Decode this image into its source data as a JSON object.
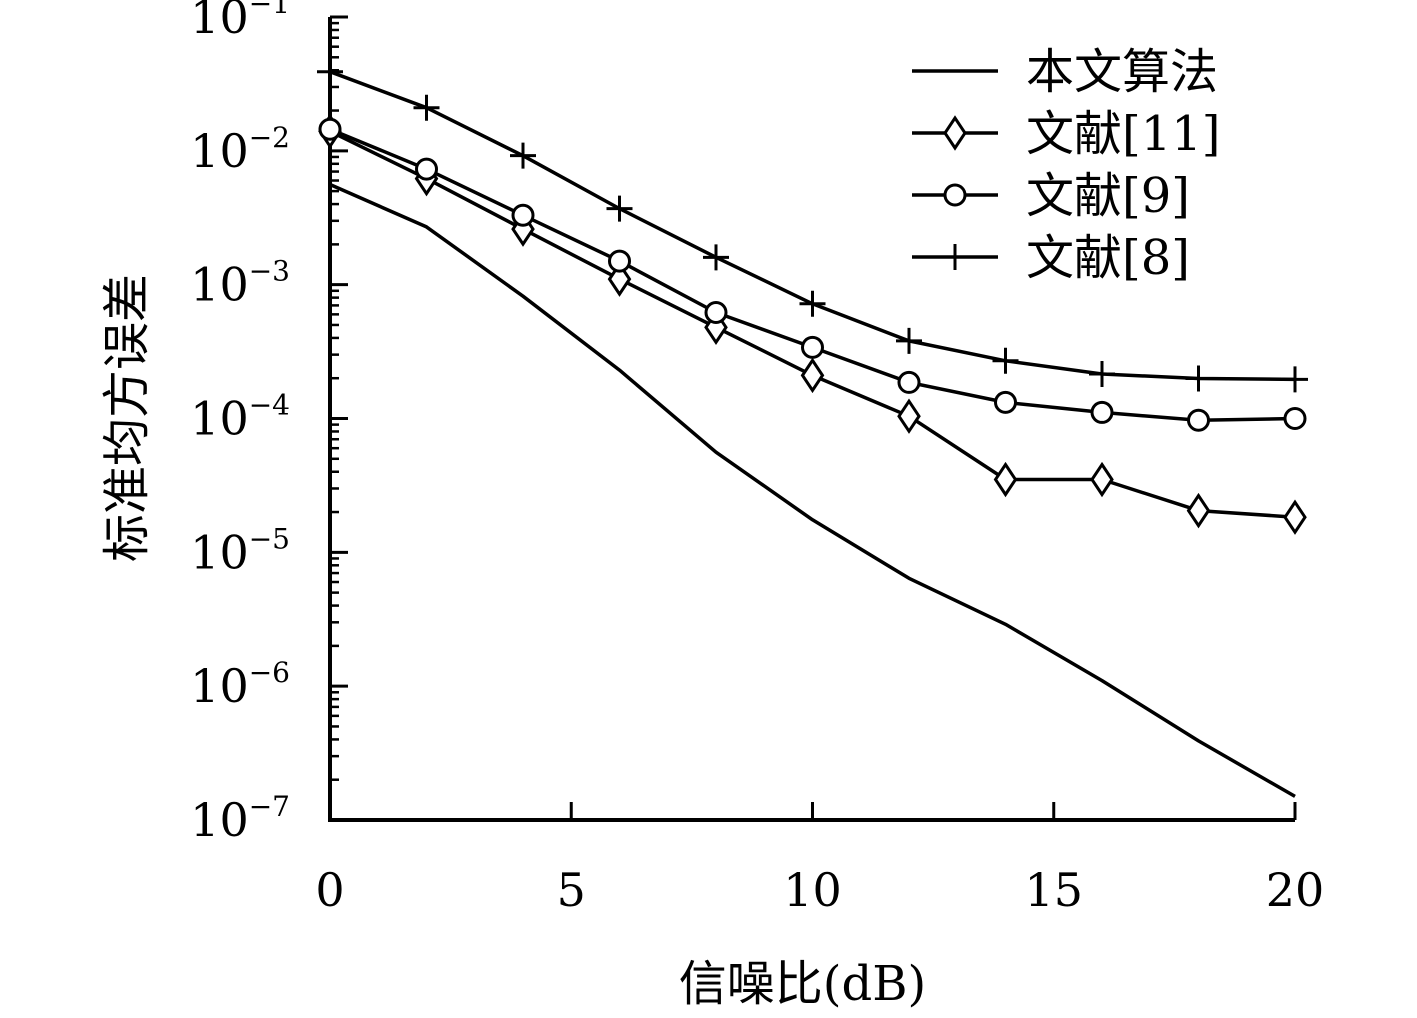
{
  "chart_data": {
    "type": "line",
    "title": "",
    "xlabel": "信噪比(dB)",
    "ylabel": "标准均方误差",
    "xlim": [
      0,
      20
    ],
    "ylim": [
      1e-07,
      0.1
    ],
    "yscale": "log",
    "grid": false,
    "legend_position": "top-right",
    "x_ticks": [
      {
        "value": 0,
        "label": "0"
      },
      {
        "value": 5,
        "label": "5"
      },
      {
        "value": 10,
        "label": "10"
      },
      {
        "value": 15,
        "label": "15"
      },
      {
        "value": 20,
        "label": "20"
      }
    ],
    "y_ticks": [
      {
        "value": 0.1,
        "base": "10",
        "exp": "−1"
      },
      {
        "value": 0.01,
        "base": "10",
        "exp": "−2"
      },
      {
        "value": 0.001,
        "base": "10",
        "exp": "−3"
      },
      {
        "value": 0.0001,
        "base": "10",
        "exp": "−4"
      },
      {
        "value": 1e-05,
        "base": "10",
        "exp": "−5"
      },
      {
        "value": 1e-06,
        "base": "10",
        "exp": "−6"
      },
      {
        "value": 1e-07,
        "base": "10",
        "exp": "−7"
      }
    ],
    "series": [
      {
        "name": "本文算法",
        "marker": "none",
        "x": [
          0,
          2,
          4,
          6,
          8,
          10,
          12,
          14,
          16,
          18,
          20
        ],
        "y": [
          0.0056,
          0.0027,
          0.00082,
          0.00023,
          5.6e-05,
          1.75e-05,
          6.4e-06,
          2.9e-06,
          1.1e-06,
          3.9e-07,
          1.5e-07
        ]
      },
      {
        "name": "文献[11]",
        "marker": "diamond",
        "x": [
          0,
          2,
          4,
          6,
          8,
          10,
          12,
          14,
          16,
          18,
          20
        ],
        "y": [
          0.014,
          0.0062,
          0.0026,
          0.0011,
          0.00048,
          0.00021,
          0.000104,
          3.5e-05,
          3.5e-05,
          2.05e-05,
          1.83e-05
        ]
      },
      {
        "name": "文献[9]",
        "marker": "circle",
        "x": [
          0,
          2,
          4,
          6,
          8,
          10,
          12,
          14,
          16,
          18,
          20
        ],
        "y": [
          0.0145,
          0.0073,
          0.0033,
          0.0015,
          0.00062,
          0.00034,
          0.000186,
          0.000132,
          0.000111,
          9.7e-05,
          0.0001
        ]
      },
      {
        "name": "文献[8]",
        "marker": "plus",
        "x": [
          0,
          2,
          4,
          6,
          8,
          10,
          12,
          14,
          16,
          18,
          20
        ],
        "y": [
          0.039,
          0.021,
          0.0092,
          0.0037,
          0.0016,
          0.00072,
          0.00038,
          0.00027,
          0.000215,
          0.000199,
          0.000196
        ]
      }
    ]
  }
}
